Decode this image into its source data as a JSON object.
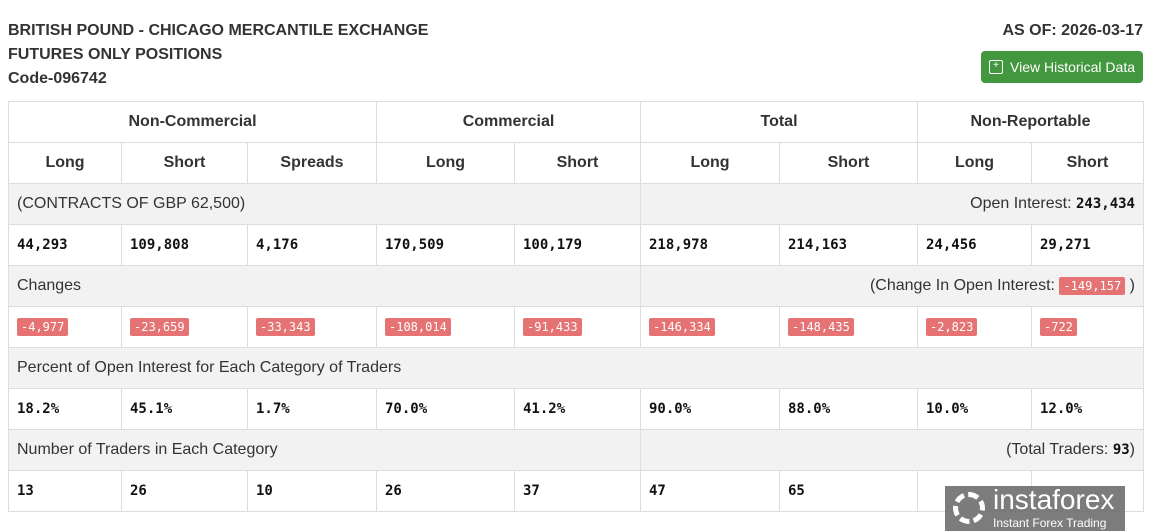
{
  "header": {
    "title_lines": [
      "BRITISH POUND - CHICAGO MERCANTILE EXCHANGE",
      "FUTURES ONLY POSITIONS",
      "Code-096742"
    ],
    "as_of": "AS OF: 2026-03-17",
    "button": "View Historical Data",
    "button_color": "#43973f"
  },
  "groups": [
    "Non-Commercial",
    "Commercial",
    "Total",
    "Non-Reportable"
  ],
  "subheaders": [
    "Long",
    "Short",
    "Spreads",
    "Long",
    "Short",
    "Long",
    "Short",
    "Long",
    "Short"
  ],
  "contracts_label": "(CONTRACTS OF GBP 62,500)",
  "open_interest_label": "Open Interest:",
  "open_interest": "243,434",
  "positions": [
    "44,293",
    "109,808",
    "4,176",
    "170,509",
    "100,179",
    "218,978",
    "214,163",
    "24,456",
    "29,271"
  ],
  "changes_label": "Changes",
  "change_oi_label": "(Change In Open Interest:",
  "change_oi": "-149,157",
  "change_oi_close": ")",
  "changes": [
    "-4,977",
    "-23,659",
    "-33,343",
    "-108,014",
    "-91,433",
    "-146,334",
    "-148,435",
    "-2,823",
    "-722"
  ],
  "percent_label": "Percent of Open Interest for Each Category of Traders",
  "percents": [
    "18.2%",
    "45.1%",
    "1.7%",
    "70.0%",
    "41.2%",
    "90.0%",
    "88.0%",
    "10.0%",
    "12.0%"
  ],
  "traders_label": "Number of Traders in Each Category",
  "total_traders_label": "(Total Traders:",
  "total_traders": "93",
  "total_traders_close": ")",
  "traders": [
    "13",
    "26",
    "10",
    "26",
    "37",
    "47",
    "65",
    "",
    ""
  ],
  "logo": {
    "name": "instaforex",
    "tagline": "Instant Forex Trading"
  },
  "negative_color": "#e57373"
}
